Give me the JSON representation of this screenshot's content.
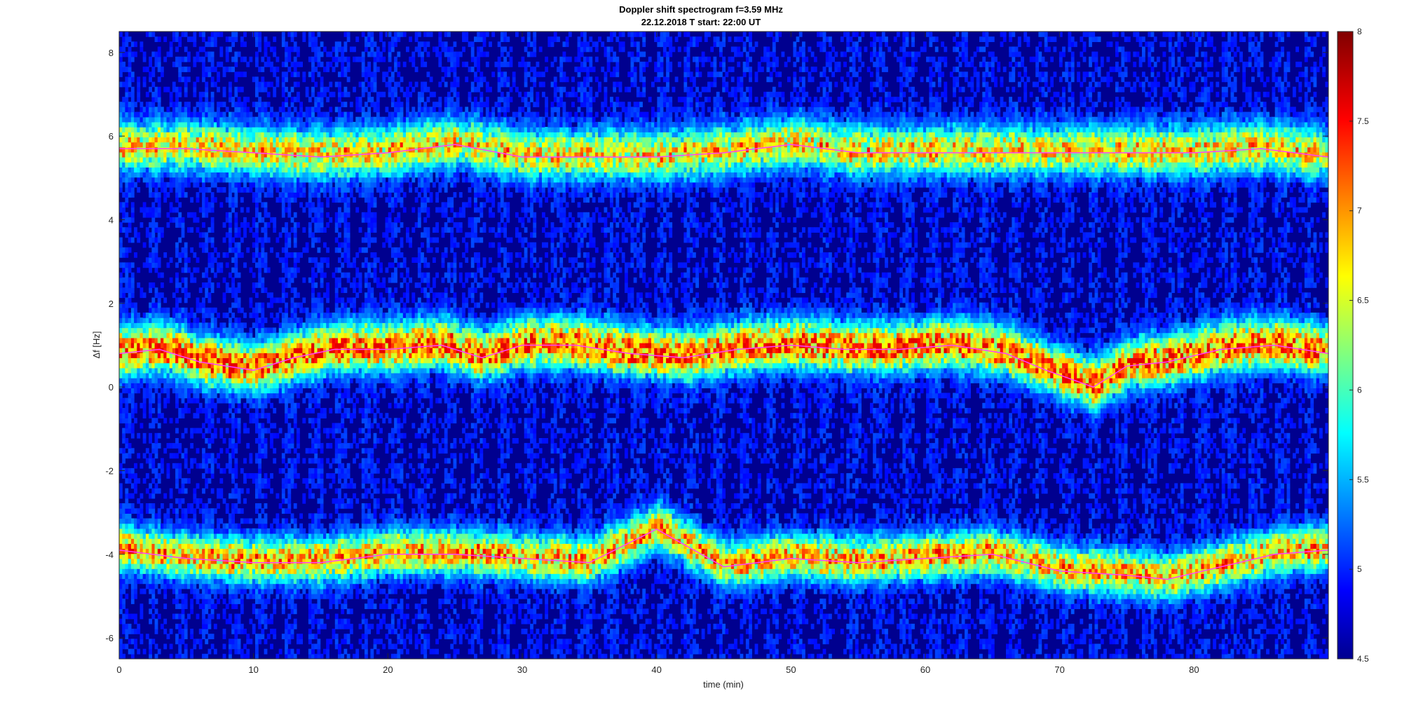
{
  "chart_data": {
    "type": "heatmap",
    "title": "Doppler shift spectrogram f=3.59 MHz",
    "subtitle": "22.12.2018    T start: 22:00 UT",
    "xlabel": "time (min)",
    "ylabel": "Δf [Hz]",
    "xlim": [
      0,
      90
    ],
    "ylim": [
      -6.5,
      8.5
    ],
    "xticks": [
      "0",
      "10",
      "20",
      "30",
      "40",
      "50",
      "60",
      "70",
      "80"
    ],
    "yticks": [
      "8",
      "6",
      "4",
      "2",
      "0",
      "-2",
      "-4",
      "-6"
    ],
    "colorbar": {
      "range": [
        4.5,
        8
      ],
      "ticks": [
        "8",
        "7.5",
        "7",
        "6.5",
        "6",
        "5.5",
        "5",
        "4.5"
      ],
      "colormap": "jet"
    },
    "grid": false,
    "series": [
      {
        "x": [
          0,
          5,
          10,
          15,
          20,
          25,
          30,
          35,
          40,
          45,
          50,
          55,
          60,
          65,
          70,
          72.5,
          75,
          80,
          85,
          90
        ],
        "y": [
          5.7,
          5.7,
          5.6,
          5.5,
          5.6,
          5.8,
          5.5,
          5.5,
          5.5,
          5.6,
          5.8,
          5.6,
          5.6,
          5.6,
          5.6,
          5.6,
          5.6,
          5.6,
          5.7,
          5.5
        ]
      },
      {
        "x": [
          0,
          3,
          6,
          10,
          13,
          16,
          20,
          24,
          27,
          30,
          34,
          38,
          42,
          46,
          50,
          54,
          58,
          62,
          66,
          69,
          72.5,
          75,
          78,
          82,
          86,
          90
        ],
        "y": [
          0.8,
          0.9,
          0.6,
          0.4,
          0.7,
          0.9,
          0.9,
          1.0,
          0.7,
          1.0,
          1.0,
          0.8,
          0.7,
          0.9,
          1.0,
          0.9,
          0.9,
          1.0,
          0.8,
          0.4,
          0.0,
          0.5,
          0.6,
          0.9,
          1.0,
          0.8
        ]
      },
      {
        "x": [
          0,
          5,
          10,
          15,
          20,
          25,
          30,
          35,
          40,
          45,
          50,
          55,
          60,
          65,
          70,
          75,
          78,
          82,
          86,
          90
        ],
        "y": [
          -3.9,
          -4.1,
          -4.2,
          -4.2,
          -4.0,
          -4.0,
          -4.1,
          -4.2,
          -3.4,
          -4.3,
          -4.1,
          -4.2,
          -4.1,
          -4.0,
          -4.4,
          -4.5,
          -4.6,
          -4.3,
          -4.0,
          -3.9
        ]
      }
    ]
  },
  "colors": {
    "background": "#00008f",
    "trace": "#ff40ff"
  }
}
